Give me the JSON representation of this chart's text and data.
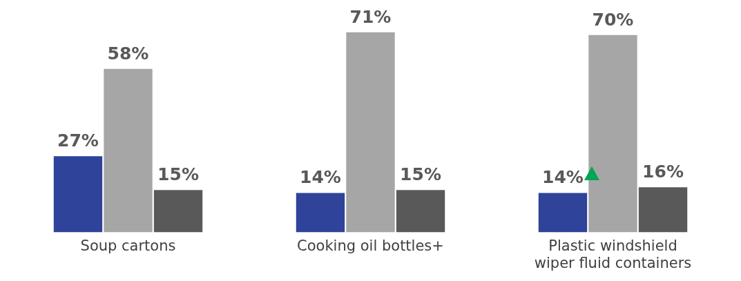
{
  "chart_data": {
    "type": "bar",
    "categories": [
      "Soup cartons",
      "Cooking oil bottles+",
      "Plastic windshield wiper fluid containers"
    ],
    "series": [
      {
        "color": "#2e4399",
        "values": [
          27,
          14,
          14
        ],
        "value_labels": [
          "27%",
          "14%",
          "14%"
        ]
      },
      {
        "color": "#a6a6a6",
        "values": [
          58,
          71,
          70
        ],
        "value_labels": [
          "58%",
          "71%",
          "70%"
        ]
      },
      {
        "color": "#595959",
        "values": [
          15,
          15,
          16
        ],
        "value_labels": [
          "15%",
          "15%",
          "16%"
        ]
      }
    ],
    "legend": false,
    "grid": false
  }
}
